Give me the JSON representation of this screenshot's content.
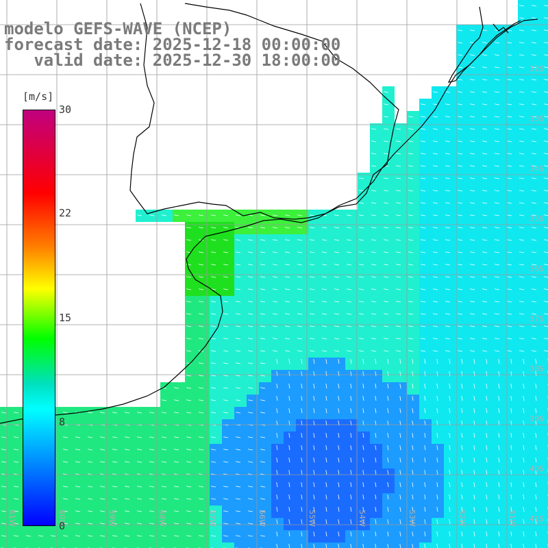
{
  "title": {
    "line1": "modelo GEFS-WAVE (NCEP)",
    "line2": "forecast date: 2025-12-18 00:00:00",
    "line3": "   valid date: 2025-12-30 18:00:00"
  },
  "colorbar": {
    "unit": "[m/s]",
    "ticks": [
      {
        "label": "30",
        "value": 30
      },
      {
        "label": "22",
        "value": 22
      },
      {
        "label": "15",
        "value": 15
      },
      {
        "label": "8",
        "value": 8
      },
      {
        "label": "0",
        "value": 0
      }
    ],
    "colors": [
      "#0000ff",
      "#0080ff",
      "#00ffff",
      "#00ff00",
      "#ffff00",
      "#ff8000",
      "#ff0000",
      "#c0007f"
    ]
  },
  "lat_labels": [
    "32S",
    "33S",
    "34S",
    "35S",
    "36S",
    "37S",
    "38S",
    "39S",
    "40S",
    "41S"
  ],
  "lon_labels": [
    "61W",
    "60W",
    "59W",
    "58W",
    "57W",
    "56W",
    "55W",
    "54W",
    "53W",
    "52W",
    "51W"
  ],
  "colors": {
    "land": "#ffffff",
    "grid": "#9a9a9a",
    "coast": "#000000",
    "arrows": "#ffffff",
    "title": "#7a7a7a"
  }
}
